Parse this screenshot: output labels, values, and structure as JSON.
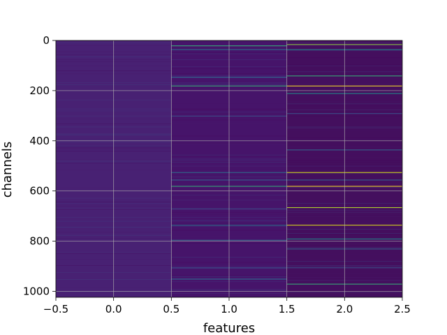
{
  "chart_data": {
    "type": "heatmap",
    "xlabel": "features",
    "ylabel": "channels",
    "xlim": [
      -0.5,
      2.5
    ],
    "ylim": [
      1024,
      0
    ],
    "x_ticks": [
      "−0.5",
      "0.0",
      "0.5",
      "1.0",
      "1.5",
      "2.0",
      "2.5"
    ],
    "y_ticks": [
      "0",
      "200",
      "400",
      "600",
      "800",
      "1000"
    ],
    "x_tick_values": [
      -0.5,
      0.0,
      0.5,
      1.0,
      1.5,
      2.0,
      2.5
    ],
    "y_tick_values": [
      0,
      200,
      400,
      600,
      800,
      1000
    ],
    "grid": true,
    "colormap": "viridis",
    "columns": [
      0,
      1,
      2
    ],
    "n_channels": 1024,
    "base_colors": [
      "#482173",
      "#46146a",
      "#440f5e"
    ],
    "highlight_rows": [
      {
        "column": 1,
        "channel": 20,
        "color": "#35b779"
      },
      {
        "column": 1,
        "channel": 35,
        "color": "#2c728e"
      },
      {
        "column": 1,
        "channel": 145,
        "color": "#31688e"
      },
      {
        "column": 1,
        "channel": 180,
        "color": "#35b779"
      },
      {
        "column": 1,
        "channel": 300,
        "color": "#3b528b"
      },
      {
        "column": 1,
        "channel": 525,
        "color": "#2c728e"
      },
      {
        "column": 1,
        "channel": 555,
        "color": "#31688e"
      },
      {
        "column": 1,
        "channel": 580,
        "color": "#35b779"
      },
      {
        "column": 1,
        "channel": 670,
        "color": "#3b528b"
      },
      {
        "column": 1,
        "channel": 735,
        "color": "#2c728e"
      },
      {
        "column": 1,
        "channel": 795,
        "color": "#31688e"
      },
      {
        "column": 1,
        "channel": 905,
        "color": "#3b528b"
      },
      {
        "column": 1,
        "channel": 950,
        "color": "#2c728e"
      },
      {
        "column": 2,
        "channel": 15,
        "color": "#8fd744"
      },
      {
        "column": 2,
        "channel": 35,
        "color": "#21918c"
      },
      {
        "column": 2,
        "channel": 140,
        "color": "#35b779"
      },
      {
        "column": 2,
        "channel": 180,
        "color": "#fde725"
      },
      {
        "column": 2,
        "channel": 210,
        "color": "#21918c"
      },
      {
        "column": 2,
        "channel": 290,
        "color": "#3b528b"
      },
      {
        "column": 2,
        "channel": 435,
        "color": "#31688e"
      },
      {
        "column": 2,
        "channel": 525,
        "color": "#dde318"
      },
      {
        "column": 2,
        "channel": 555,
        "color": "#31688e"
      },
      {
        "column": 2,
        "channel": 580,
        "color": "#fde725"
      },
      {
        "column": 2,
        "channel": 665,
        "color": "#b5de2b"
      },
      {
        "column": 2,
        "channel": 735,
        "color": "#dde318"
      },
      {
        "column": 2,
        "channel": 790,
        "color": "#21918c"
      },
      {
        "column": 2,
        "channel": 830,
        "color": "#31688e"
      },
      {
        "column": 2,
        "channel": 905,
        "color": "#3b528b"
      },
      {
        "column": 2,
        "channel": 970,
        "color": "#35b779"
      }
    ]
  }
}
